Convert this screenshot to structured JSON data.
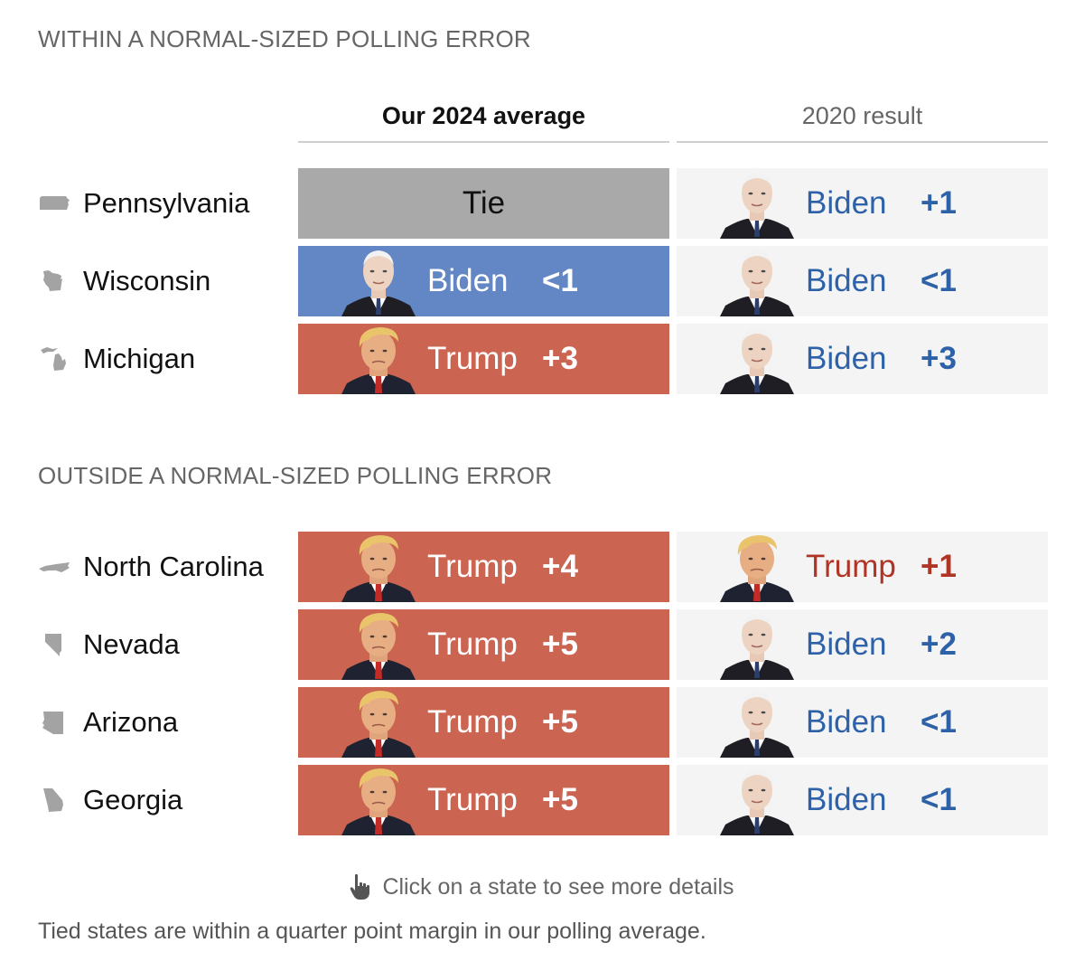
{
  "sections": [
    {
      "title": "WITHIN A NORMAL-SIZED POLLING ERROR"
    },
    {
      "title": "OUTSIDE A NORMAL-SIZED POLLING ERROR"
    }
  ],
  "columns": {
    "average": "Our 2024 average",
    "result": "2020 result"
  },
  "colors": {
    "biden": "#6386c4",
    "trump": "#cc6452",
    "tie": "#a9a9a9",
    "result_bg": "#f4f4f4",
    "biden_text": "#2e62a8",
    "trump_text": "#b03526"
  },
  "chart_data": {
    "type": "table",
    "columns": [
      "Our 2024 average",
      "2020 result"
    ],
    "rows": [
      {
        "section": 0,
        "state": "Pennsylvania",
        "state_icon": "pennsylvania-shape-icon",
        "avg": {
          "leader": "Tie",
          "candidate_label": "Tie",
          "margin_label": ""
        },
        "result": {
          "leader": "Biden",
          "candidate_label": "Biden",
          "margin_label": "+1"
        }
      },
      {
        "section": 0,
        "state": "Wisconsin",
        "state_icon": "wisconsin-shape-icon",
        "avg": {
          "leader": "Biden",
          "candidate_label": "Biden",
          "margin_label": "<1"
        },
        "result": {
          "leader": "Biden",
          "candidate_label": "Biden",
          "margin_label": "<1"
        }
      },
      {
        "section": 0,
        "state": "Michigan",
        "state_icon": "michigan-shape-icon",
        "avg": {
          "leader": "Trump",
          "candidate_label": "Trump",
          "margin_label": "+3"
        },
        "result": {
          "leader": "Biden",
          "candidate_label": "Biden",
          "margin_label": "+3"
        }
      },
      {
        "section": 1,
        "state": "North Carolina",
        "state_icon": "north-carolina-shape-icon",
        "avg": {
          "leader": "Trump",
          "candidate_label": "Trump",
          "margin_label": "+4"
        },
        "result": {
          "leader": "Trump",
          "candidate_label": "Trump",
          "margin_label": "+1"
        }
      },
      {
        "section": 1,
        "state": "Nevada",
        "state_icon": "nevada-shape-icon",
        "avg": {
          "leader": "Trump",
          "candidate_label": "Trump",
          "margin_label": "+5"
        },
        "result": {
          "leader": "Biden",
          "candidate_label": "Biden",
          "margin_label": "+2"
        }
      },
      {
        "section": 1,
        "state": "Arizona",
        "state_icon": "arizona-shape-icon",
        "avg": {
          "leader": "Trump",
          "candidate_label": "Trump",
          "margin_label": "+5"
        },
        "result": {
          "leader": "Biden",
          "candidate_label": "Biden",
          "margin_label": "<1"
        }
      },
      {
        "section": 1,
        "state": "Georgia",
        "state_icon": "georgia-shape-icon",
        "avg": {
          "leader": "Trump",
          "candidate_label": "Trump",
          "margin_label": "+5"
        },
        "result": {
          "leader": "Biden",
          "candidate_label": "Biden",
          "margin_label": "<1"
        }
      }
    ]
  },
  "hint": {
    "text": "Click on a state to see more details",
    "icon": "pointing-hand-icon"
  },
  "footnote": "Tied states are within a quarter point margin in our polling average."
}
